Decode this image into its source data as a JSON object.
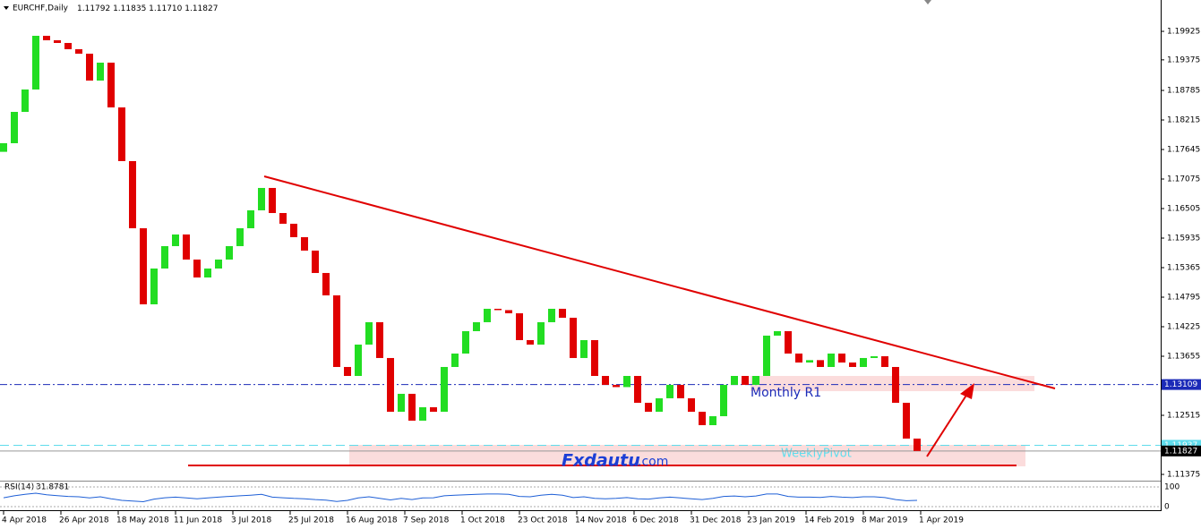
{
  "chart_data": {
    "type": "candlestick",
    "symbol": "EURCHF,Daily",
    "quote": [
      {
        "value": 1.11792,
        "label": "1.11792"
      },
      {
        "value": 1.11835,
        "label": "1.11835"
      },
      {
        "value": 1.1171,
        "label": "1.11710"
      },
      {
        "value": 1.11827,
        "label": "1.11827"
      }
    ],
    "x": [
      0,
      3,
      6,
      9,
      12,
      15,
      18,
      21,
      24,
      27,
      30,
      33,
      36,
      39,
      42,
      45,
      48,
      51,
      54,
      57,
      60,
      63,
      66,
      69,
      72,
      75,
      78,
      81,
      84,
      87,
      90,
      93,
      96,
      99,
      102,
      105,
      108,
      111,
      114,
      117,
      120,
      123,
      126,
      129,
      132,
      135,
      138,
      141,
      144,
      147,
      150,
      153,
      156,
      159,
      162,
      165,
      168,
      171,
      174,
      177,
      180,
      183,
      186,
      189,
      192,
      195,
      198,
      201,
      204,
      207,
      210,
      213,
      216,
      219,
      222,
      225,
      228,
      231,
      234,
      237,
      240,
      243,
      246,
      249,
      252,
      255
    ],
    "open": [
      1.176,
      1.17766,
      1.18371,
      1.18803,
      1.19839,
      1.19753,
      1.19701,
      1.1958,
      1.19494,
      1.18975,
      1.19321,
      1.18457,
      1.17421,
      1.16125,
      1.14657,
      1.15348,
      1.1578,
      1.16005,
      1.15521,
      1.15175,
      1.15348,
      1.15521,
      1.1578,
      1.16125,
      1.16471,
      1.16903,
      1.16419,
      1.16212,
      1.15953,
      1.15694,
      1.15262,
      1.1483,
      1.13448,
      1.13275,
      1.1388,
      1.14312,
      1.13621,
      1.12584,
      1.1293,
      1.12412,
      1.12671,
      1.12584,
      1.13448,
      1.13707,
      1.14139,
      1.14312,
      1.14571,
      1.14545,
      1.14484,
      1.13966,
      1.1388,
      1.14312,
      1.14571,
      1.14398,
      1.13621,
      1.13966,
      1.13275,
      1.13103,
      1.1306,
      1.13275,
      1.12757,
      1.12584,
      1.12844,
      1.13103,
      1.12844,
      1.12584,
      1.12325,
      1.12498,
      1.13103,
      1.13275,
      1.13103,
      1.13275,
      1.14053,
      1.14139,
      1.13707,
      1.13534,
      1.1358,
      1.13448,
      1.13707,
      1.13534,
      1.13448,
      1.13621,
      1.13655,
      1.13448,
      1.12757,
      1.12066
    ],
    "close": [
      1.17766,
      1.18371,
      1.18803,
      1.19839,
      1.19753,
      1.19701,
      1.1958,
      1.19494,
      1.18975,
      1.19321,
      1.18457,
      1.17421,
      1.16125,
      1.14657,
      1.15348,
      1.1578,
      1.16005,
      1.15521,
      1.15175,
      1.15348,
      1.15521,
      1.1578,
      1.16125,
      1.16471,
      1.16903,
      1.16419,
      1.16212,
      1.15953,
      1.15694,
      1.15262,
      1.1483,
      1.13448,
      1.13275,
      1.1388,
      1.14312,
      1.13621,
      1.12584,
      1.1293,
      1.12412,
      1.12671,
      1.12584,
      1.13448,
      1.13707,
      1.14139,
      1.14312,
      1.14571,
      1.14545,
      1.14484,
      1.13966,
      1.1388,
      1.14312,
      1.14571,
      1.14398,
      1.13621,
      1.13966,
      1.13275,
      1.13103,
      1.1306,
      1.13275,
      1.12757,
      1.12584,
      1.12844,
      1.13103,
      1.12844,
      1.12584,
      1.12325,
      1.12498,
      1.13103,
      1.13275,
      1.13103,
      1.13275,
      1.14053,
      1.14139,
      1.13707,
      1.13534,
      1.1358,
      1.13448,
      1.13707,
      1.13534,
      1.13448,
      1.13621,
      1.13655,
      1.13448,
      1.12757,
      1.12066,
      1.11827
    ],
    "up_color": "#22dd22",
    "down_color": "#e00000",
    "xlim": [
      -1,
      323
    ],
    "ylim": [
      1.11254,
      1.2053
    ],
    "yticks": [
      1.19925,
      1.19375,
      1.18785,
      1.18215,
      1.17645,
      1.17075,
      1.16505,
      1.15935,
      1.15365,
      1.14795,
      1.14225,
      1.13655,
      1.12515,
      1.11375
    ],
    "xticks": [
      {
        "value": 0,
        "label": "4 Apr 2018"
      },
      {
        "value": 16,
        "label": "26 Apr 2018"
      },
      {
        "value": 32,
        "label": "18 May 2018"
      },
      {
        "value": 48,
        "label": "11 Jun 2018"
      },
      {
        "value": 64,
        "label": "3 Jul 2018"
      },
      {
        "value": 80,
        "label": "25 Jul 2018"
      },
      {
        "value": 96,
        "label": "16 Aug 2018"
      },
      {
        "value": 112,
        "label": "7 Sep 2018"
      },
      {
        "value": 128,
        "label": "1 Oct 2018"
      },
      {
        "value": 144,
        "label": "23 Oct 2018"
      },
      {
        "value": 160,
        "label": "14 Nov 2018"
      },
      {
        "value": 176,
        "label": "6 Dec 2018"
      },
      {
        "value": 192,
        "label": "31 Dec 2018"
      },
      {
        "value": 208,
        "label": "23 Jan 2019"
      },
      {
        "value": 224,
        "label": "14 Feb 2019"
      },
      {
        "value": 240,
        "label": "8 Mar 2019"
      },
      {
        "value": 256,
        "label": "1 Apr 2019"
      }
    ],
    "levels": [
      {
        "name": "Monthly R1",
        "value": 1.13109,
        "color": "#1c2bb8"
      },
      {
        "name": "WeeklyPivot",
        "value": 1.11937,
        "color": "#5fdcec"
      },
      {
        "value": 1.11827,
        "color": "#000000"
      }
    ],
    "watermark": [
      "Fxdautu",
      ".com"
    ],
    "rsi": {
      "name": "RSI(14)",
      "color": "#1e5fd6",
      "ylim": [
        -18,
        127
      ],
      "yticks": [
        100,
        0
      ],
      "values": [
        45,
        55,
        62,
        68,
        60,
        56,
        52,
        50,
        44,
        50,
        40,
        32,
        28,
        25,
        38,
        45,
        48,
        44,
        40,
        44,
        48,
        52,
        55,
        58,
        62,
        48,
        45,
        42,
        40,
        36,
        33,
        26,
        32,
        44,
        50,
        42,
        34,
        42,
        36,
        44,
        45,
        55,
        58,
        60,
        62,
        64,
        64,
        62,
        52,
        50,
        58,
        62,
        58,
        46,
        50,
        42,
        40,
        42,
        46,
        40,
        38,
        44,
        48,
        44,
        40,
        36,
        42,
        52,
        54,
        50,
        54,
        64,
        64,
        52,
        48,
        48,
        47,
        52,
        48,
        46,
        50,
        50,
        46,
        36,
        30,
        31.8781
      ]
    }
  }
}
